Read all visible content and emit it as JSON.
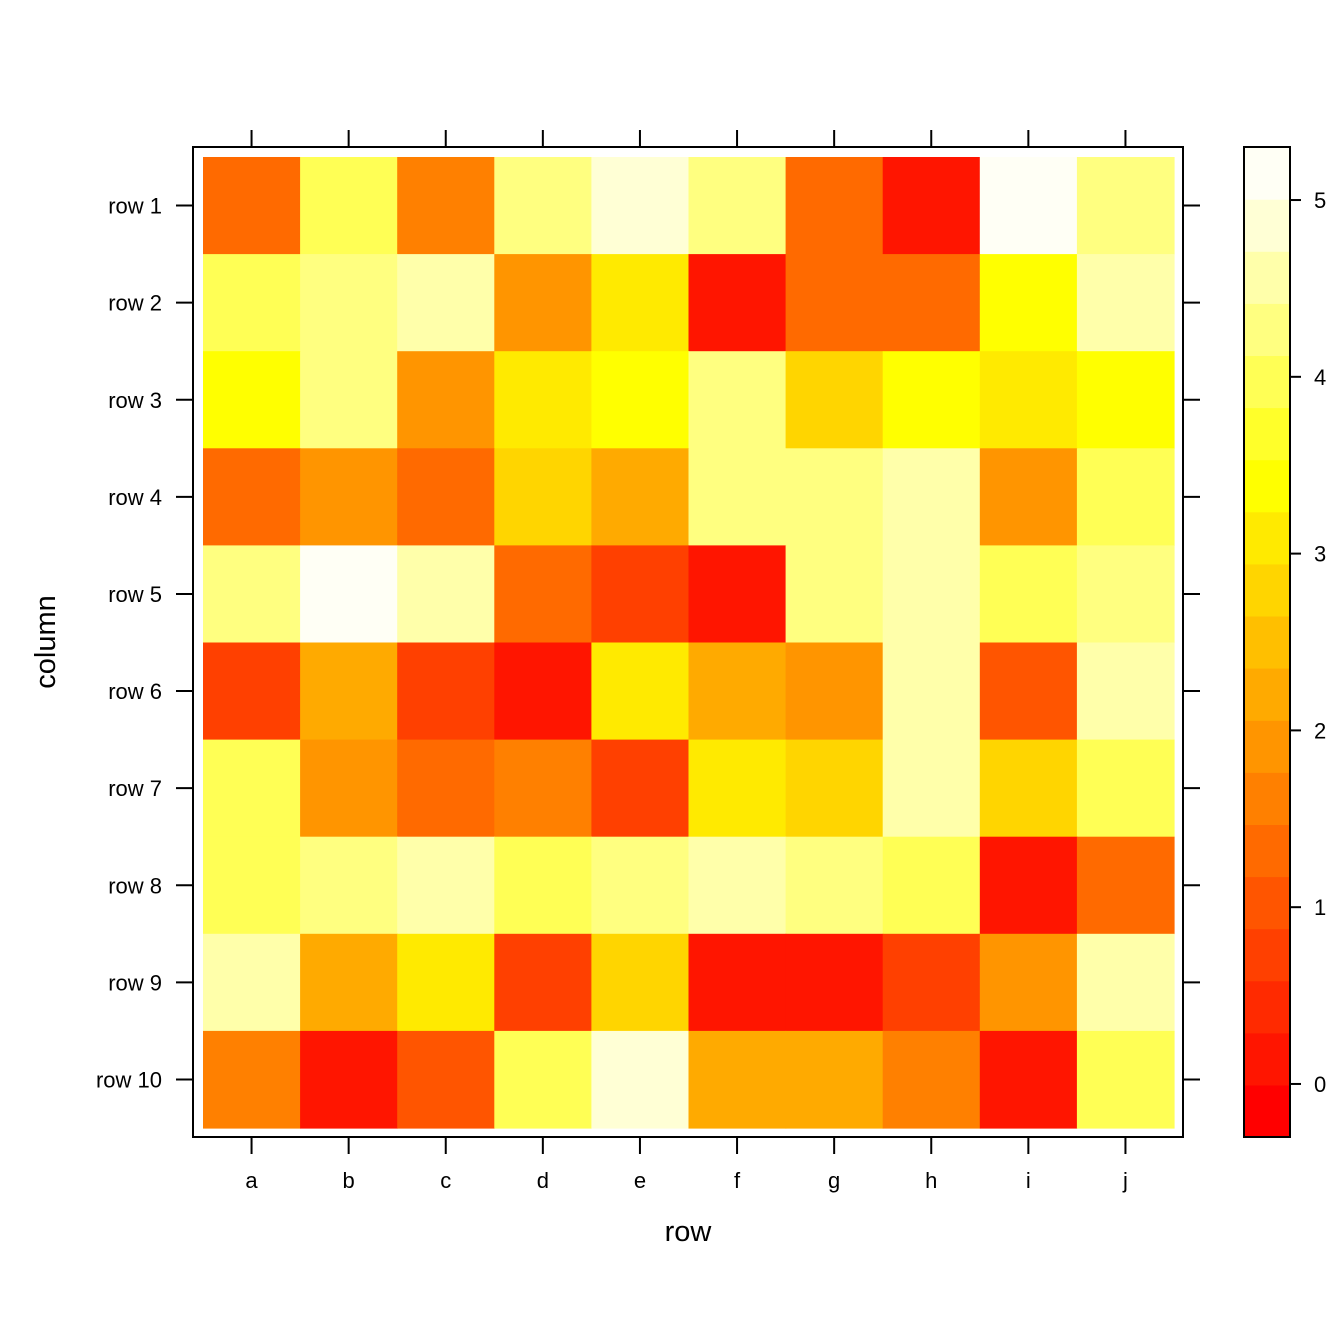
{
  "chart_data": {
    "type": "heatmap",
    "xlabel": "row",
    "ylabel": "column",
    "x_categories": [
      "a",
      "b",
      "c",
      "d",
      "e",
      "f",
      "g",
      "h",
      "i",
      "j"
    ],
    "y_categories": [
      "row 1",
      "row 2",
      "row 3",
      "row 4",
      "row 5",
      "row 6",
      "row 7",
      "row 8",
      "row 9",
      "row 10"
    ],
    "values": [
      [
        1.3,
        4.0,
        1.6,
        4.2,
        4.8,
        4.4,
        1.3,
        0.1,
        5.1,
        4.2
      ],
      [
        4.0,
        4.4,
        4.7,
        1.9,
        3.0,
        0.1,
        1.3,
        1.3,
        3.4,
        4.6
      ],
      [
        3.4,
        4.4,
        1.9,
        3.0,
        3.4,
        4.4,
        2.7,
        3.4,
        3.1,
        3.4
      ],
      [
        1.3,
        1.9,
        1.3,
        2.7,
        2.3,
        4.4,
        4.2,
        4.7,
        1.9,
        4.0
      ],
      [
        4.4,
        5.1,
        4.6,
        1.3,
        0.6,
        0.1,
        4.4,
        4.7,
        4.0,
        4.2
      ],
      [
        0.6,
        2.3,
        0.6,
        0.1,
        3.0,
        2.3,
        1.9,
        4.7,
        1.0,
        4.6
      ],
      [
        4.0,
        1.9,
        1.3,
        1.6,
        0.6,
        3.0,
        2.7,
        4.7,
        2.7,
        4.0
      ],
      [
        4.0,
        4.4,
        4.6,
        4.0,
        4.4,
        4.7,
        4.2,
        4.0,
        0.1,
        1.3
      ],
      [
        4.6,
        2.3,
        3.0,
        0.6,
        2.7,
        0.1,
        0.1,
        0.6,
        1.9,
        4.6
      ],
      [
        1.6,
        0.1,
        1.0,
        4.0,
        4.8,
        2.3,
        2.3,
        1.6,
        0.1,
        4.0
      ]
    ],
    "colorbar": {
      "ticks": [
        0,
        1,
        2,
        3,
        4,
        5
      ],
      "range": [
        -0.3,
        5.3
      ],
      "colors": [
        "#FF0000",
        "#FF1500",
        "#FF2A00",
        "#FF4000",
        "#FF5500",
        "#FF6A00",
        "#FF8000",
        "#FF9500",
        "#FFAA00",
        "#FFBF00",
        "#FFD500",
        "#FFEA00",
        "#FFFF00",
        "#FFFF2A",
        "#FFFF55",
        "#FFFF80",
        "#FFFFAA",
        "#FFFFD5",
        "#FFFFF5"
      ]
    },
    "grid": false,
    "legend": "colorbar at right"
  }
}
